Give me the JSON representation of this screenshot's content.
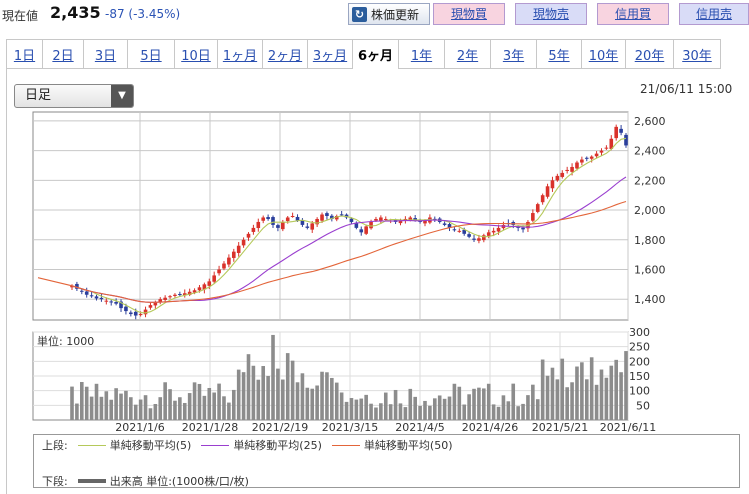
{
  "header": {
    "price_label": "現在値",
    "price_value": "2,435",
    "price_change": "-87 (-3.45%)",
    "refresh_label": "株価更新",
    "refresh_icon": "refresh-icon",
    "buttons": [
      {
        "label": "現物買",
        "color": "#f8d4e0"
      },
      {
        "label": "現物売",
        "color": "#d9dcf7"
      },
      {
        "label": "信用買",
        "color": "#f8d4e0"
      },
      {
        "label": "信用売",
        "color": "#d9dcf7"
      }
    ]
  },
  "tabs": [
    {
      "label": "1日",
      "active": false
    },
    {
      "label": "2日",
      "active": false
    },
    {
      "label": "3日",
      "active": false
    },
    {
      "label": "5日",
      "active": false
    },
    {
      "label": "10日",
      "active": false
    },
    {
      "label": "1ヶ月",
      "active": false
    },
    {
      "label": "2ヶ月",
      "active": false
    },
    {
      "label": "3ヶ月",
      "active": false
    },
    {
      "label": "6ヶ月",
      "active": true
    },
    {
      "label": "1年",
      "active": false
    },
    {
      "label": "2年",
      "active": false
    },
    {
      "label": "3年",
      "active": false
    },
    {
      "label": "5年",
      "active": false
    },
    {
      "label": "10年",
      "active": false
    },
    {
      "label": "20年",
      "active": false
    },
    {
      "label": "30年",
      "active": false
    }
  ],
  "chart_controls": {
    "period_select_value": "日足",
    "timestamp": "21/06/11 15:00"
  },
  "chart_data": {
    "type": "candlestick",
    "price_axis": {
      "ticks": [
        "2,600",
        "2,400",
        "2,200",
        "2,000",
        "1,800",
        "1,600",
        "1,400"
      ],
      "ylim": [
        1260,
        2660
      ]
    },
    "volume_axis": {
      "unit_label": "単位: 1000",
      "ticks": [
        "300",
        "250",
        "200",
        "150",
        "100",
        "50"
      ],
      "ylim": [
        0,
        300
      ]
    },
    "date_labels": [
      "2021/1/6",
      "2021/1/28",
      "2021/2/19",
      "2021/3/15",
      "2021/4/5",
      "2021/4/26",
      "2021/5/21",
      "2021/6/11"
    ],
    "closes": [
      1490,
      1470,
      1450,
      1430,
      1420,
      1405,
      1400,
      1390,
      1380,
      1370,
      1340,
      1320,
      1300,
      1290,
      1300,
      1330,
      1360,
      1380,
      1400,
      1410,
      1420,
      1430,
      1430,
      1440,
      1450,
      1460,
      1480,
      1500,
      1520,
      1560,
      1600,
      1640,
      1680,
      1720,
      1760,
      1800,
      1840,
      1880,
      1920,
      1950,
      1940,
      1900,
      1880,
      1920,
      1950,
      1960,
      1930,
      1900,
      1880,
      1910,
      1940,
      1970,
      1960,
      1940,
      1960,
      1970,
      1950,
      1920,
      1880,
      1850,
      1890,
      1920,
      1940,
      1950,
      1940,
      1930,
      1920,
      1930,
      1940,
      1950,
      1930,
      1920,
      1930,
      1950,
      1940,
      1920,
      1900,
      1880,
      1870,
      1860,
      1840,
      1820,
      1800,
      1810,
      1830,
      1850,
      1860,
      1880,
      1900,
      1910,
      1900,
      1880,
      1870,
      1920,
      1980,
      2040,
      2100,
      2160,
      2200,
      2230,
      2250,
      2270,
      2290,
      2320,
      2340,
      2350,
      2360,
      2380,
      2400,
      2420,
      2480,
      2560,
      2520,
      2435
    ],
    "ma_series": [
      {
        "name": "単純移動平均(5)",
        "color": "#b5c95a"
      },
      {
        "name": "単純移動平均(25)",
        "color": "#9a3fcf"
      },
      {
        "name": "単純移動平均(50)",
        "color": "#e3653a"
      }
    ],
    "volume_series_name": "出来高 単位:(1000株/口/枚)"
  },
  "legend": {
    "upper_label": "上段:",
    "lower_label": "下段:",
    "volume_color": "#666666"
  },
  "colors": {
    "up_candle": "#d9322b",
    "down_candle": "#2b3f9c",
    "volume_bar": "#8c8c8c",
    "grid": "#c8c8c8"
  }
}
